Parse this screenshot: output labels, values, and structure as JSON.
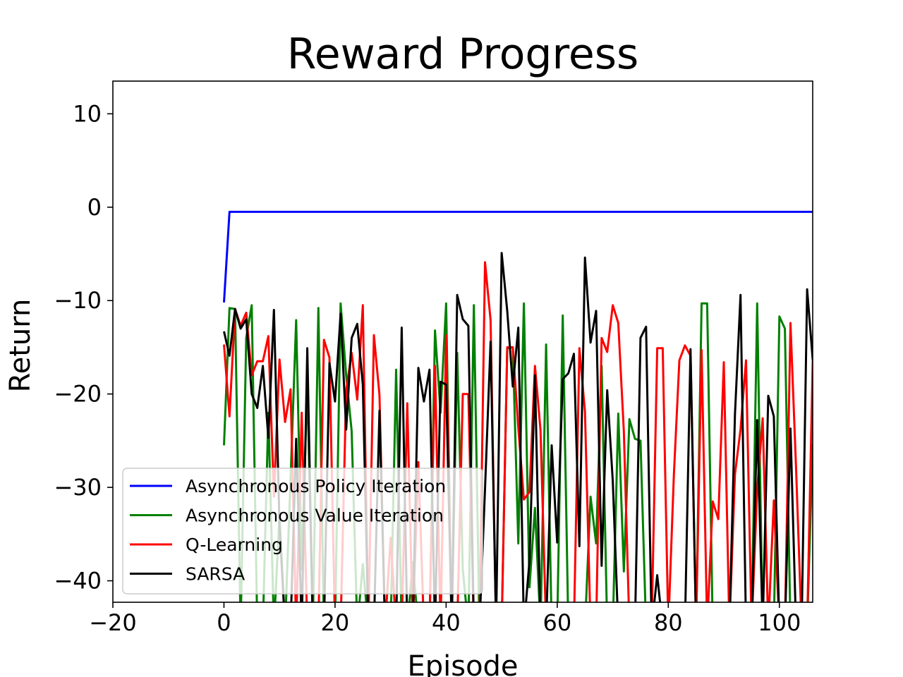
{
  "chart_data": {
    "type": "line",
    "title": "Reward Progress",
    "xlabel": "Episode",
    "ylabel": "Return",
    "xlim": [
      -20,
      106
    ],
    "ylim": [
      -42.3,
      13.5
    ],
    "xticks": [
      -20,
      0,
      20,
      40,
      60,
      80,
      100
    ],
    "yticks": [
      10,
      0,
      -10,
      -20,
      -30,
      -40
    ],
    "xtick_labels": [
      "−20",
      "0",
      "20",
      "40",
      "60",
      "80",
      "100"
    ],
    "ytick_labels": [
      "10",
      "0",
      "−10",
      "−20",
      "−30",
      "−40"
    ],
    "grid": false,
    "legend_position": "lower-left",
    "series": [
      {
        "name": "Asynchronous Policy Iteration",
        "color": "#0000ff",
        "x": [
          0,
          1,
          106
        ],
        "values": [
          -10.2,
          -0.5,
          -0.5
        ]
      },
      {
        "name": "Asynchronous Value Iteration",
        "color": "#008000",
        "values": [
          -25.5,
          -10.8,
          -10.9,
          -45,
          -14,
          -10.5,
          -45,
          -45,
          -22,
          -45,
          -33,
          -45,
          -29,
          -12.1,
          -38.8,
          -18.8,
          -45,
          -10.8,
          -45,
          -45,
          -45,
          -10.3,
          -18,
          -24,
          -45,
          -38.2,
          -45,
          -45,
          -45,
          -45,
          -45,
          -17.4,
          -45,
          -45,
          -38,
          -45,
          -45,
          -45,
          -13.2,
          -22,
          -10.3,
          -45,
          -15.6,
          -38.8,
          -45,
          -10.5,
          -45,
          -45,
          -45,
          -45,
          -45,
          -15.1,
          -15,
          -36,
          -10.3,
          -40.7,
          -32.2,
          -45,
          -14.7,
          -45,
          -45,
          -11.6,
          -45,
          -45,
          -45,
          -45,
          -31,
          -36,
          -17,
          -45,
          -45,
          -22.1,
          -39,
          -22.7,
          -24.8,
          -25,
          -45,
          -45,
          -45,
          -45,
          -45,
          -45,
          -45,
          -45,
          -45,
          -45,
          -10.3,
          -10.3,
          -45,
          -45,
          -45,
          -45,
          -45,
          -45,
          -45,
          -45,
          -10.3,
          -45,
          -45,
          -45,
          -11.7,
          -13,
          -45,
          -45,
          -45,
          -45,
          -25.5,
          -25.2
        ]
      },
      {
        "name": "Q-Learning",
        "color": "#ff0000",
        "values": [
          -14.7,
          -22.4,
          -10.9,
          -12.7,
          -11.3,
          -18,
          -16.5,
          -16.5,
          -13.8,
          -31,
          -16.3,
          -23,
          -19.5,
          -45,
          -22,
          -45,
          -45,
          -45,
          -14.2,
          -16.1,
          -45,
          -45,
          -19.6,
          -15.6,
          -20.6,
          -10.5,
          -45,
          -13.7,
          -20.1,
          -45,
          -35.4,
          -45,
          -45,
          -21,
          -45,
          -27.3,
          -45,
          -45,
          -17,
          -45,
          -13.7,
          -45,
          -45,
          -20,
          -20,
          -45,
          -45,
          -5.9,
          -12.1,
          -45,
          -45,
          -15,
          -15,
          -23.6,
          -31.3,
          -30.5,
          -17,
          -23.9,
          -45,
          -45,
          -45,
          -45,
          -45,
          -45,
          -15.1,
          -21.9,
          -45,
          -45,
          -14,
          -15.5,
          -10.5,
          -12.4,
          -24,
          -45,
          -45,
          -45,
          -45,
          -45,
          -15.1,
          -15.1,
          -45,
          -28.7,
          -16.4,
          -14.8,
          -15.9,
          -45,
          -15.3,
          -45,
          -31.5,
          -33.4,
          -16.6,
          -45,
          -28.6,
          -23.8,
          -16.4,
          -45,
          -30.3,
          -22.6,
          -45,
          -31.4,
          -45,
          -45,
          -12.4,
          -27.9,
          -45,
          -45,
          -16.6,
          -13.6
        ]
      },
      {
        "name": "SARSA",
        "color": "#000000",
        "values": [
          -13.3,
          -15.9,
          -10.9,
          -13,
          -12,
          -20,
          -21.5,
          -17,
          -24.7,
          -11,
          -34,
          -45,
          -45,
          -24.8,
          -45,
          -15.1,
          -45,
          -45,
          -45,
          -16.7,
          -20.8,
          -11.4,
          -23.8,
          -14,
          -12.5,
          -19,
          -45,
          -45,
          -21.8,
          -45,
          -45,
          -45,
          -12.9,
          -45,
          -45,
          -17.2,
          -20.8,
          -17.4,
          -45,
          -18.7,
          -19,
          -45,
          -9.4,
          -12,
          -12.7,
          -45,
          -45,
          -30.2,
          -14.4,
          -45,
          -4.9,
          -11.1,
          -19.2,
          -12.9,
          -45,
          -37.9,
          -18,
          -45,
          -45,
          -25.5,
          -35.9,
          -18.4,
          -17.8,
          -15.7,
          -36.3,
          -5.4,
          -14.5,
          -11.1,
          -38.4,
          -19.6,
          -29.3,
          -45,
          -45,
          -45,
          -45,
          -14,
          -12.8,
          -45,
          -39.4,
          -45,
          -45,
          -45,
          -45,
          -45,
          -15.2,
          -45,
          -45,
          -45,
          -45,
          -45,
          -45,
          -45,
          -22.2,
          -9.4,
          -45,
          -45,
          -22.8,
          -45,
          -20.2,
          -22.4,
          -45,
          -45,
          -23.7,
          -45,
          -45,
          -8.8,
          -16.3,
          -20.1
        ]
      }
    ]
  }
}
